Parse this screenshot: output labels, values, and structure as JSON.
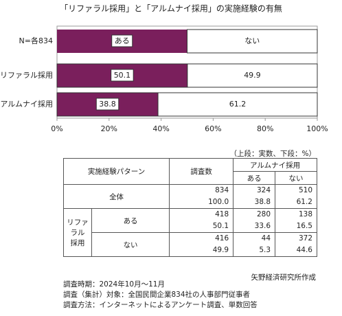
{
  "chart_data": {
    "type": "stacked_barh",
    "title": "「リファラル採用」と「アルムナイ採用」の実施経験の有無",
    "legend_label": "N=各834",
    "categories": [
      "リファラル採用",
      "アルムナイ採用"
    ],
    "series": [
      {
        "name": "ある",
        "color": "#7a1f5c",
        "values": [
          50.1,
          38.8
        ]
      },
      {
        "name": "ない",
        "color": "#ffffff",
        "values": [
          49.9,
          61.2
        ]
      }
    ],
    "xlim": [
      0,
      100
    ],
    "xticks": [
      {
        "value": 0,
        "label": "0%"
      },
      {
        "value": 20,
        "label": "20%"
      },
      {
        "value": 40,
        "label": "40%"
      },
      {
        "value": 60,
        "label": "60%"
      },
      {
        "value": 80,
        "label": "80%"
      },
      {
        "value": 100,
        "label": "100%"
      }
    ]
  },
  "table": {
    "note": "（上段：実数、下段：%）",
    "header": {
      "pattern": "実施経験パターン",
      "count": "調査数",
      "alumni": "アルムナイ採用",
      "yes": "ある",
      "no": "ない"
    },
    "group_label": [
      "リファラル",
      "採用"
    ],
    "rows": [
      {
        "label": "全体",
        "cells": [
          [
            "834",
            "100.0"
          ],
          [
            "324",
            "38.8"
          ],
          [
            "510",
            "61.2"
          ]
        ]
      },
      {
        "label": "ある",
        "cells": [
          [
            "418",
            "50.1"
          ],
          [
            "280",
            "33.6"
          ],
          [
            "138",
            "16.5"
          ]
        ]
      },
      {
        "label": "ない",
        "cells": [
          [
            "416",
            "49.9"
          ],
          [
            "44",
            "5.3"
          ],
          [
            "372",
            "44.6"
          ]
        ]
      }
    ],
    "source": "矢野経済研究所作成",
    "notes": [
      "調査時期：2024年10月～11月",
      "調査（集計）対象：全国民間企業834社の人事部門従事者",
      "調査方法：インターネットによるアンケート調査、単数回答"
    ]
  }
}
